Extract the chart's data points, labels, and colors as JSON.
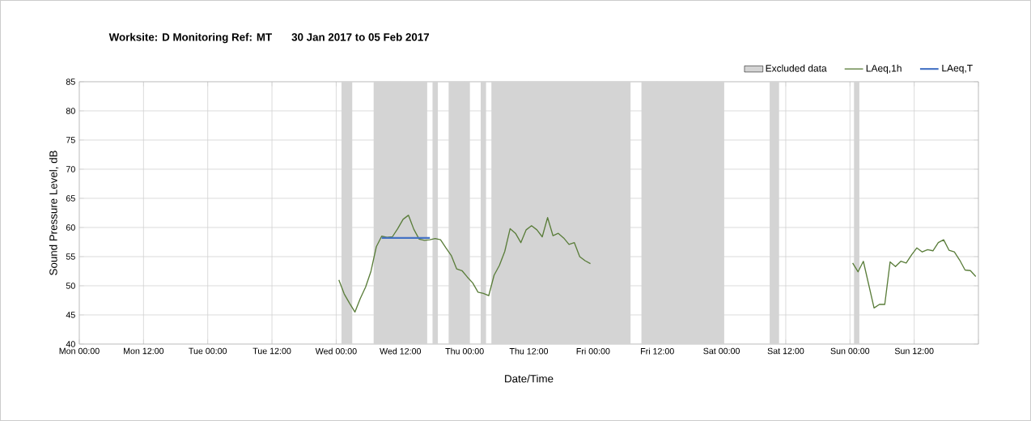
{
  "chart_data": {
    "type": "line",
    "title": "Worksite: D   Monitoring Ref: MT",
    "subtitle": "30 Jan 2017 to 05 Feb 2017",
    "xlabel": "Date/Time",
    "ylabel": "Sound Pressure Level, dB",
    "xlim": [
      "2017-01-30T00:00",
      "2017-02-06T00:00"
    ],
    "ylim": [
      40,
      85
    ],
    "xticks": [
      {
        "value": "2017-01-30T00:00",
        "label": "Mon 00:00"
      },
      {
        "value": "2017-01-30T12:00",
        "label": "Mon 12:00"
      },
      {
        "value": "2017-01-31T00:00",
        "label": "Tue 00:00"
      },
      {
        "value": "2017-01-31T12:00",
        "label": "Tue 12:00"
      },
      {
        "value": "2017-02-01T00:00",
        "label": "Wed 00:00"
      },
      {
        "value": "2017-02-01T12:00",
        "label": "Wed 12:00"
      },
      {
        "value": "2017-02-02T00:00",
        "label": "Thu 00:00"
      },
      {
        "value": "2017-02-02T12:00",
        "label": "Thu 12:00"
      },
      {
        "value": "2017-02-03T00:00",
        "label": "Fri 00:00"
      },
      {
        "value": "2017-02-03T12:00",
        "label": "Fri 12:00"
      },
      {
        "value": "2017-02-04T00:00",
        "label": "Sat 00:00"
      },
      {
        "value": "2017-02-04T12:00",
        "label": "Sat 12:00"
      },
      {
        "value": "2017-02-05T00:00",
        "label": "Sun 00:00"
      },
      {
        "value": "2017-02-05T12:00",
        "label": "Sun 12:00"
      },
      {
        "value": "2017-02-06T00:00",
        "label": null
      }
    ],
    "yticks": [
      40,
      45,
      50,
      55,
      60,
      65,
      70,
      75,
      80,
      85
    ],
    "grid": true,
    "legend": "top right",
    "marker": "none",
    "line_style": "solid",
    "bands": [
      {
        "axis": "x",
        "from": "2017-02-01T01:00",
        "to": "2017-02-01T03:00",
        "label": "Excluded data",
        "color": "#d4d4d4"
      },
      {
        "axis": "x",
        "from": "2017-02-01T07:00",
        "to": "2017-02-01T17:00",
        "color": "#d4d4d4"
      },
      {
        "axis": "x",
        "from": "2017-02-01T18:00",
        "to": "2017-02-01T19:00",
        "color": "#d4d4d4"
      },
      {
        "axis": "x",
        "from": "2017-02-01T21:00",
        "to": "2017-02-02T01:00",
        "color": "#d4d4d4"
      },
      {
        "axis": "x",
        "from": "2017-02-02T03:00",
        "to": "2017-02-02T04:00",
        "color": "#d4d4d4"
      },
      {
        "axis": "x",
        "from": "2017-02-02T05:00",
        "to": "2017-02-03T07:00",
        "color": "#d4d4d4"
      },
      {
        "axis": "x",
        "from": "2017-02-03T09:00",
        "to": "2017-02-04T00:30",
        "color": "#d4d4d4"
      },
      {
        "axis": "x",
        "from": "2017-02-04T09:00",
        "to": "2017-02-04T10:45",
        "color": "#d4d4d4"
      },
      {
        "axis": "x",
        "from": "2017-02-05T00:45",
        "to": "2017-02-05T01:45",
        "color": "#d4d4d4"
      }
    ],
    "series": [
      {
        "name": "LAeq,1h",
        "color": "#5a7d3a",
        "x": [
          "2017-02-01T00:30",
          "2017-02-01T01:30",
          "2017-02-01T02:30",
          "2017-02-01T03:30",
          "2017-02-01T04:30",
          "2017-02-01T05:30",
          "2017-02-01T06:30",
          "2017-02-01T07:30",
          "2017-02-01T08:30",
          "2017-02-01T09:30",
          "2017-02-01T10:30",
          "2017-02-01T11:30",
          "2017-02-01T12:30",
          "2017-02-01T13:30",
          "2017-02-01T14:30",
          "2017-02-01T15:30",
          "2017-02-01T16:30",
          "2017-02-01T17:30",
          "2017-02-01T18:30",
          "2017-02-01T19:30",
          "2017-02-01T20:30",
          "2017-02-01T21:30",
          "2017-02-01T22:30",
          "2017-02-01T23:30",
          "2017-02-02T00:30",
          "2017-02-02T01:30",
          "2017-02-02T02:30",
          "2017-02-02T03:30",
          "2017-02-02T04:30",
          "2017-02-02T05:30",
          "2017-02-02T06:30",
          "2017-02-02T07:30",
          "2017-02-02T08:30",
          "2017-02-02T09:30",
          "2017-02-02T10:30",
          "2017-02-02T11:30",
          "2017-02-02T12:30",
          "2017-02-02T13:30",
          "2017-02-02T14:30",
          "2017-02-02T15:30",
          "2017-02-02T16:30",
          "2017-02-02T17:30",
          "2017-02-02T18:30",
          "2017-02-02T19:30",
          "2017-02-02T20:30",
          "2017-02-02T21:30",
          "2017-02-02T22:30",
          "2017-02-02T23:30",
          "2017-02-04T00:00",
          "2017-02-05T00:30",
          "2017-02-05T01:30",
          "2017-02-05T02:30",
          "2017-02-05T03:30",
          "2017-02-05T04:30",
          "2017-02-05T05:30",
          "2017-02-05T06:30",
          "2017-02-05T07:30",
          "2017-02-05T08:30",
          "2017-02-05T09:30",
          "2017-02-05T10:30",
          "2017-02-05T11:30",
          "2017-02-05T12:30",
          "2017-02-05T13:30",
          "2017-02-05T14:30",
          "2017-02-05T15:30",
          "2017-02-05T16:30",
          "2017-02-05T17:30",
          "2017-02-05T18:30",
          "2017-02-05T19:30",
          "2017-02-05T20:30",
          "2017-02-05T21:30",
          "2017-02-05T22:30",
          "2017-02-05T23:30"
        ],
        "values": [
          51.0,
          48.6,
          47.0,
          45.5,
          47.8,
          49.8,
          52.5,
          56.7,
          58.5,
          58.3,
          58.4,
          59.8,
          61.4,
          62.1,
          59.7,
          58.0,
          57.8,
          57.9,
          58.1,
          57.9,
          56.5,
          55.2,
          52.9,
          52.6,
          51.5,
          50.5,
          48.9,
          48.7,
          48.3,
          51.8,
          53.5,
          55.9,
          59.8,
          59.0,
          57.4,
          59.6,
          60.3,
          59.6,
          58.4,
          61.7,
          58.6,
          59.0,
          58.2,
          57.1,
          57.4,
          55.0,
          54.3,
          53.8,
          null,
          53.9,
          52.4,
          54.2,
          50.2,
          46.2,
          46.8,
          46.8,
          54.1,
          53.3,
          54.2,
          53.9,
          55.3,
          56.5,
          55.8,
          56.2,
          56.0,
          57.4,
          57.9,
          56.1,
          55.8,
          54.4,
          52.7,
          52.6,
          51.6
        ]
      },
      {
        "name": "LAeq,T",
        "color": "#4472c4",
        "x": [
          "2017-02-01T08:30",
          "2017-02-01T17:30"
        ],
        "values": [
          58.2,
          58.2
        ]
      }
    ]
  }
}
